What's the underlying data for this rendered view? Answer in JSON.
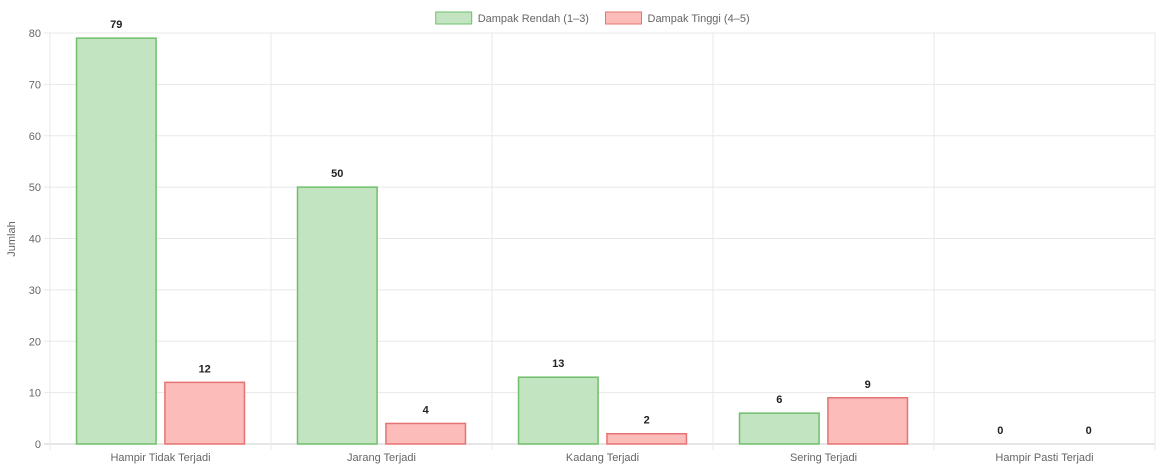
{
  "chart_data": {
    "type": "bar",
    "categories": [
      "Hampir Tidak Terjadi",
      "Jarang Terjadi",
      "Kadang Terjadi",
      "Sering Terjadi",
      "Hampir Pasti Terjadi"
    ],
    "series": [
      {
        "name": "Dampak Rendah (1–3)",
        "values": [
          79,
          50,
          13,
          6,
          0
        ],
        "color": "#c3e4c1",
        "border": "#6fbf6b"
      },
      {
        "name": "Dampak Tinggi (4–5)",
        "values": [
          12,
          4,
          2,
          9,
          0
        ],
        "color": "#fbbcba",
        "border": "#e57373"
      }
    ],
    "title": "",
    "xlabel": "",
    "ylabel": "Jumlah",
    "ylim": [
      0,
      80
    ],
    "yticks": [
      0,
      10,
      20,
      30,
      40,
      50,
      60,
      70,
      80
    ],
    "grid": true,
    "legend": "top-center",
    "data_labels": true
  }
}
